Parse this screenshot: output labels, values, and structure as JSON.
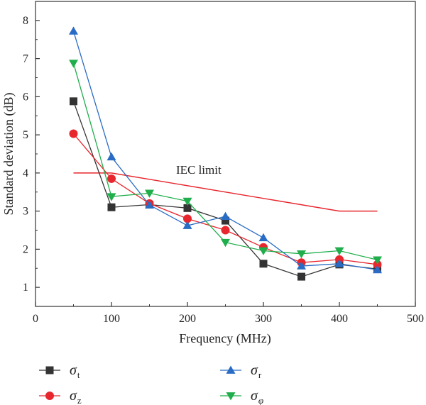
{
  "chart_data": {
    "type": "line",
    "xlabel": "Frequency (MHz)",
    "ylabel": "Standard deviation (dB)",
    "xlim": [
      0,
      500
    ],
    "ylim": [
      0.5,
      8.5
    ],
    "xticks": [
      0,
      100,
      200,
      300,
      400,
      500
    ],
    "yticks": [
      1,
      2,
      3,
      4,
      5,
      6,
      7,
      8
    ],
    "grid": false,
    "legend_position": "bottom",
    "x": [
      50,
      100,
      150,
      200,
      250,
      300,
      350,
      400,
      450
    ],
    "series": [
      {
        "name": "σt",
        "symbol": "σ",
        "subscript": "t",
        "marker": "square",
        "color": "#333333",
        "values": [
          5.88,
          3.1,
          3.17,
          3.08,
          2.75,
          1.62,
          1.28,
          1.6,
          1.48
        ]
      },
      {
        "name": "σz",
        "symbol": "σ",
        "subscript": "z",
        "marker": "circle",
        "color": "#e8262d",
        "values": [
          5.03,
          3.85,
          3.2,
          2.8,
          2.5,
          2.05,
          1.65,
          1.73,
          1.6
        ]
      },
      {
        "name": "σr",
        "symbol": "σ",
        "subscript": "r",
        "marker": "triangle-up",
        "color": "#2a6cc5",
        "values": [
          7.72,
          4.42,
          3.16,
          2.62,
          2.86,
          2.3,
          1.56,
          1.62,
          1.46
        ]
      },
      {
        "name": "σφ",
        "symbol": "σ",
        "subscript": "φ",
        "marker": "triangle-down",
        "color": "#1fae4b",
        "values": [
          6.88,
          3.38,
          3.47,
          3.26,
          2.18,
          1.96,
          1.88,
          1.96,
          1.72
        ]
      }
    ],
    "reference_line": {
      "label": "IEC limit",
      "color": "#e8262d",
      "x": [
        50,
        100,
        400,
        450
      ],
      "y": [
        4,
        4,
        3,
        3
      ]
    }
  }
}
